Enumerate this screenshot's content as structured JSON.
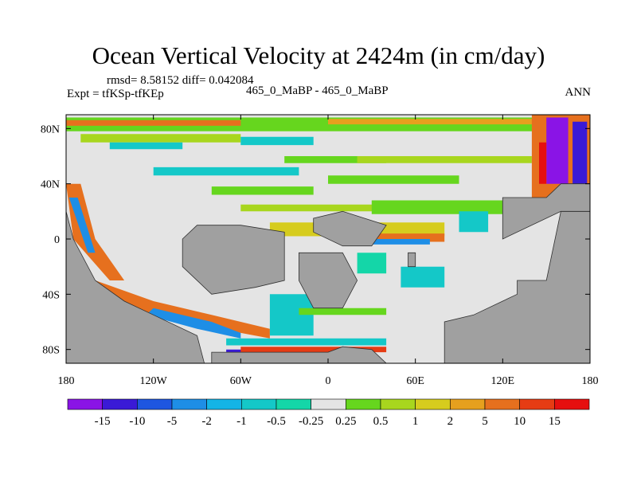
{
  "header": {
    "title": "Ocean Vertical Velocity at 2424m (in cm/day)",
    "stats": "rmsd= 8.58152  diff= 0.042084",
    "experiment": "Expt = tfKSp-tfKEp",
    "center_label": "465_0_MaBP - 465_0_MaBP",
    "season": "ANN"
  },
  "chart_data": {
    "type": "heatmap",
    "title": "Ocean Vertical Velocity at 2424m (in cm/day)",
    "variable": "Ocean vertical velocity difference",
    "units": "cm/day",
    "depth": "2424m",
    "x_axis": {
      "range": [
        -180,
        180
      ],
      "ticks": [
        -180,
        -120,
        -60,
        0,
        60,
        120,
        180
      ],
      "tick_labels": [
        "180",
        "120W",
        "60W",
        "0",
        "60E",
        "120E",
        "180"
      ]
    },
    "y_axis": {
      "range": [
        -90,
        90
      ],
      "ticks": [
        80,
        40,
        0,
        -40,
        -80
      ],
      "tick_labels": [
        "80N",
        "40N",
        "0",
        "40S",
        "80S"
      ]
    },
    "colorbar": {
      "levels": [
        "-15",
        "-10",
        "-5",
        "-2",
        "-1",
        "-0.5",
        "-0.25",
        "0.25",
        "0.5",
        "1",
        "2",
        "5",
        "10",
        "15"
      ],
      "colors": [
        "#8a14e6",
        "#3a1ad6",
        "#1e56e0",
        "#1e8ee6",
        "#14b4e6",
        "#14c8c8",
        "#14d6a8",
        "#e4e4e4",
        "#66d61e",
        "#a8d61e",
        "#d6cc1e",
        "#e6a01e",
        "#e6701e",
        "#e63c14",
        "#e60f0f"
      ]
    },
    "land_color": "#a0a0a0",
    "near_zero_color": "#e4e4e4",
    "annotations": [
      "Strong positive/negative bands along Antarctic margin (~70-85S)",
      "Strong signals in northwest Pacific (~40-80N, 150-170E)",
      "Near-zero values over most open ocean"
    ]
  }
}
